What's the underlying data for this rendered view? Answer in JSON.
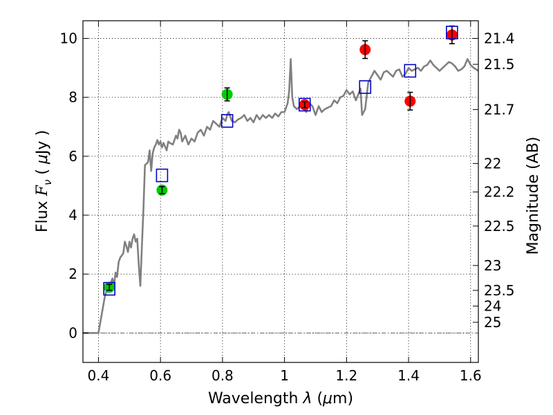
{
  "chart_data": {
    "type": "scatter",
    "xlabel": {
      "prefix": "Wavelength  ",
      "symbol": "λ",
      "units_open": " (",
      "units_mu": "μ",
      "units_rest": "m)"
    },
    "ylabel": {
      "prefix": "Flux  ",
      "symbol": "F",
      "subscript": "ν",
      "units_open": "  ( ",
      "units_mu": "μ",
      "units_rest": "Jy )"
    },
    "y2label": "Magnitude (AB)",
    "xlim": [
      0.35,
      1.625
    ],
    "ylim": [
      -1.0,
      10.6
    ],
    "grid": true,
    "x_ticks": [
      {
        "value": 0.4,
        "label": "0.4"
      },
      {
        "value": 0.6,
        "label": "0.6"
      },
      {
        "value": 0.8,
        "label": "0.8"
      },
      {
        "value": 1.0,
        "label": "1"
      },
      {
        "value": 1.2,
        "label": "1.2"
      },
      {
        "value": 1.4,
        "label": "1.4"
      },
      {
        "value": 1.6,
        "label": "1.6"
      }
    ],
    "y_ticks": [
      {
        "value": 0,
        "label": "0"
      },
      {
        "value": 2,
        "label": "2"
      },
      {
        "value": 4,
        "label": "4"
      },
      {
        "value": 6,
        "label": "6"
      },
      {
        "value": 8,
        "label": "8"
      },
      {
        "value": 10,
        "label": "10"
      }
    ],
    "magnitude_ticks": [
      {
        "value": 21.4,
        "label": "21.4"
      },
      {
        "value": 21.5,
        "label": "21.5"
      },
      {
        "value": 21.7,
        "label": "21.7"
      },
      {
        "value": 22,
        "label": "22"
      },
      {
        "value": 22.2,
        "label": "22.2"
      },
      {
        "value": 22.5,
        "label": "22.5"
      },
      {
        "value": 23,
        "label": "23"
      },
      {
        "value": 23.5,
        "label": "23.5"
      },
      {
        "value": 24,
        "label": "24"
      },
      {
        "value": 25,
        "label": "25"
      }
    ],
    "series": [
      {
        "kind": "model_spectrum",
        "color": "#808080",
        "x": [
          0.35,
          0.4,
          0.41,
          0.42,
          0.43,
          0.44,
          0.445,
          0.45,
          0.455,
          0.46,
          0.465,
          0.47,
          0.48,
          0.485,
          0.49,
          0.495,
          0.5,
          0.505,
          0.51,
          0.515,
          0.52,
          0.525,
          0.53,
          0.535,
          0.54,
          0.545,
          0.55,
          0.56,
          0.565,
          0.57,
          0.575,
          0.58,
          0.585,
          0.59,
          0.595,
          0.6,
          0.605,
          0.61,
          0.62,
          0.625,
          0.63,
          0.64,
          0.65,
          0.655,
          0.66,
          0.665,
          0.67,
          0.68,
          0.69,
          0.7,
          0.71,
          0.72,
          0.73,
          0.74,
          0.75,
          0.76,
          0.77,
          0.78,
          0.79,
          0.8,
          0.81,
          0.815,
          0.82,
          0.83,
          0.84,
          0.85,
          0.86,
          0.87,
          0.88,
          0.89,
          0.9,
          0.91,
          0.92,
          0.93,
          0.94,
          0.95,
          0.96,
          0.97,
          0.98,
          0.99,
          1.0,
          1.01,
          1.015,
          1.02,
          1.025,
          1.03,
          1.04,
          1.05,
          1.06,
          1.07,
          1.08,
          1.09,
          1.1,
          1.11,
          1.12,
          1.13,
          1.14,
          1.15,
          1.16,
          1.17,
          1.18,
          1.19,
          1.2,
          1.21,
          1.22,
          1.23,
          1.24,
          1.245,
          1.25,
          1.26,
          1.27,
          1.28,
          1.29,
          1.3,
          1.31,
          1.32,
          1.33,
          1.34,
          1.35,
          1.36,
          1.37,
          1.38,
          1.39,
          1.4,
          1.41,
          1.42,
          1.43,
          1.44,
          1.45,
          1.46,
          1.47,
          1.48,
          1.49,
          1.5,
          1.51,
          1.52,
          1.53,
          1.54,
          1.55,
          1.56,
          1.57,
          1.58,
          1.59,
          1.6,
          1.61,
          1.625
        ],
        "y": [
          0.0,
          0.0,
          0.6,
          1.2,
          1.6,
          1.7,
          1.85,
          1.6,
          2.05,
          1.9,
          2.4,
          2.55,
          2.7,
          3.1,
          2.95,
          2.75,
          3.1,
          2.9,
          3.2,
          3.35,
          3.1,
          3.2,
          2.3,
          1.6,
          2.9,
          4.2,
          5.7,
          5.8,
          6.2,
          5.5,
          6.1,
          6.3,
          6.4,
          6.55,
          6.4,
          6.5,
          6.3,
          6.45,
          6.2,
          6.5,
          6.45,
          6.4,
          6.7,
          6.6,
          6.9,
          6.8,
          6.5,
          6.7,
          6.4,
          6.6,
          6.5,
          6.8,
          6.9,
          6.7,
          7.0,
          6.9,
          7.2,
          7.1,
          7.0,
          7.3,
          7.2,
          7.4,
          7.5,
          7.2,
          7.15,
          7.25,
          7.3,
          7.4,
          7.2,
          7.3,
          7.15,
          7.4,
          7.25,
          7.4,
          7.3,
          7.4,
          7.3,
          7.45,
          7.35,
          7.5,
          7.5,
          7.8,
          8.2,
          9.3,
          8.0,
          7.7,
          7.6,
          7.7,
          7.75,
          7.5,
          7.8,
          7.7,
          7.4,
          7.7,
          7.5,
          7.6,
          7.65,
          7.7,
          7.9,
          7.8,
          8.0,
          8.05,
          8.25,
          8.1,
          8.2,
          7.9,
          8.15,
          8.3,
          7.4,
          7.6,
          8.5,
          8.7,
          8.9,
          8.75,
          8.6,
          8.85,
          8.9,
          8.8,
          8.7,
          8.9,
          8.95,
          8.7,
          8.8,
          9.0,
          8.9,
          8.95,
          9.0,
          8.9,
          9.05,
          9.1,
          9.25,
          9.1,
          9.0,
          8.9,
          9.0,
          9.1,
          9.2,
          9.15,
          9.05,
          8.9,
          8.95,
          9.05,
          9.3,
          9.1,
          9.0,
          8.9
        ]
      },
      {
        "kind": "green_points",
        "color": "#00cc00",
        "x": [
          0.435,
          0.605,
          0.815
        ],
        "y": [
          1.55,
          4.85,
          8.1
        ],
        "yerr": [
          0.1,
          0.12,
          0.22
        ]
      },
      {
        "kind": "red_points",
        "color": "#ff0000",
        "x": [
          1.065,
          1.26,
          1.405,
          1.54
        ],
        "y": [
          7.75,
          9.62,
          7.87,
          10.12
        ],
        "yerr": [
          0.1,
          0.3,
          0.3,
          0.3
        ]
      },
      {
        "kind": "blue_squares",
        "color": "#0000cc",
        "x": [
          0.435,
          0.605,
          0.815,
          1.065,
          1.26,
          1.405,
          1.54
        ],
        "y": [
          1.5,
          5.35,
          7.2,
          7.75,
          8.35,
          8.9,
          10.2
        ]
      }
    ]
  }
}
